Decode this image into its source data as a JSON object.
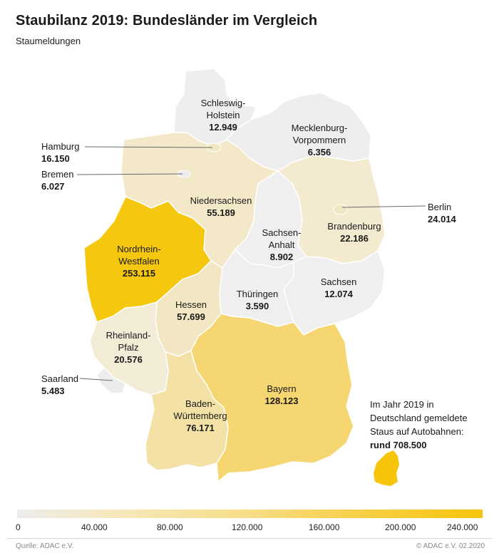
{
  "title": "Staubilanz 2019: Bundesländer im Vergleich",
  "subtitle": "Staumeldungen",
  "colors": {
    "scale_0": "#ececec",
    "scale_low": "#f5ebcb",
    "scale_mid": "#f6d97a",
    "scale_high": "#f6c40c",
    "border": "#ffffff",
    "leader": "#6a6a6a"
  },
  "states": {
    "schleswig_holstein": {
      "name": "Schleswig-\nHolstein",
      "value": "12.949"
    },
    "hamburg": {
      "name": "Hamburg",
      "value": "16.150"
    },
    "bremen": {
      "name": "Bremen",
      "value": "6.027"
    },
    "mecklenburg": {
      "name": "Mecklenburg-\nVorpommern",
      "value": "6.356"
    },
    "niedersachsen": {
      "name": "Niedersachsen",
      "value": "55.189"
    },
    "berlin": {
      "name": "Berlin",
      "value": "24.014"
    },
    "brandenburg": {
      "name": "Brandenburg",
      "value": "22.186"
    },
    "sachsen_anhalt": {
      "name": "Sachsen-\nAnhalt",
      "value": "8.902"
    },
    "nrw": {
      "name": "Nordrhein-\nWestfalen",
      "value": "253.115"
    },
    "sachsen": {
      "name": "Sachsen",
      "value": "12.074"
    },
    "thueringen": {
      "name": "Thüringen",
      "value": "3.590"
    },
    "hessen": {
      "name": "Hessen",
      "value": "57.699"
    },
    "rheinland_pfalz": {
      "name": "Rheinland-\nPfalz",
      "value": "20.576"
    },
    "saarland": {
      "name": "Saarland",
      "value": "5.483"
    },
    "bayern": {
      "name": "Bayern",
      "value": "128.123"
    },
    "baden_wuerttemberg": {
      "name": "Baden-\nWürttemberg",
      "value": "76.171"
    }
  },
  "note": {
    "line1": "Im Jahr 2019 in",
    "line2": "Deutschland gemeldete",
    "line3": "Staus auf Autobahnen:",
    "total": "rund 708.500"
  },
  "legend": {
    "ticks": [
      "0",
      "40.000",
      "80.000",
      "120.000",
      "160.000",
      "200.000",
      "240.000"
    ]
  },
  "footer": {
    "source": "Quelle: ADAC e.V.",
    "copyright": "© ADAC e.V.  02.2020"
  }
}
